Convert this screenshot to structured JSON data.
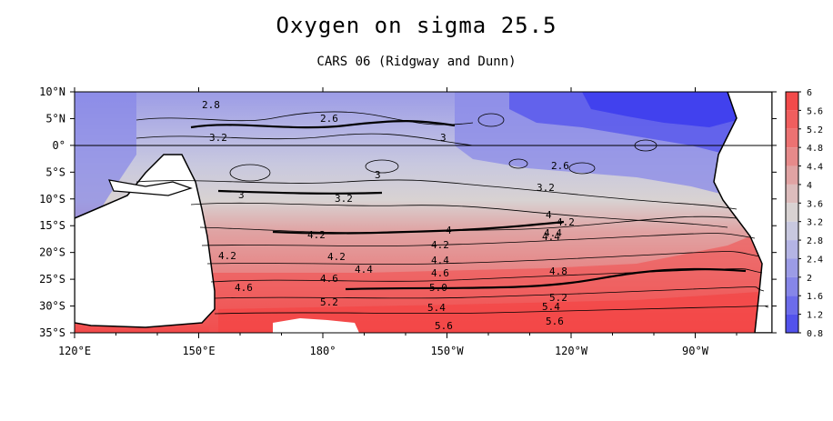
{
  "title": "Oxygen on sigma 25.5",
  "subtitle": "CARS 06 (Ridgway and Dunn)",
  "map": {
    "type": "contour-map",
    "variable": "Oxygen",
    "lon_labels": [
      "120°E",
      "150°E",
      "180°",
      "150°W",
      "120°W",
      "90°W"
    ],
    "lat_labels": [
      "10°N",
      "5°N",
      "0°",
      "5°S",
      "10°S",
      "15°S",
      "20°S",
      "25°S",
      "30°S",
      "35°S"
    ],
    "contour_labels": [
      "2.8",
      "2.6",
      "3.2",
      "3",
      "3",
      "3.2",
      "3",
      "2.6",
      "4",
      "4.2",
      "4.2",
      "4.2",
      "4.4",
      "4.4",
      "4.4",
      "4.2",
      "4.6",
      "4.6",
      "4.6",
      "4.8",
      "5.0",
      "5.2",
      "5.2",
      "5.4",
      "5.4",
      "5.6",
      "5.6",
      "4",
      "3.2",
      "4.4",
      "4.2"
    ],
    "colorbar": {
      "labels": [
        "6",
        "5.6",
        "5.2",
        "4.8",
        "4.4",
        "4",
        "3.6",
        "3.2",
        "2.8",
        "2.4",
        "2",
        "1.6",
        "1.2",
        "0.8"
      ],
      "colors": [
        "#f24a4a",
        "#f05e5e",
        "#ec7272",
        "#e68a8a",
        "#e0a3a3",
        "#dcbcbc",
        "#d8d2d2",
        "#c8c8df",
        "#b4b4e4",
        "#9c9ce6",
        "#8686e8",
        "#6c6cea",
        "#5252ec",
        "#3a3aee"
      ]
    }
  }
}
